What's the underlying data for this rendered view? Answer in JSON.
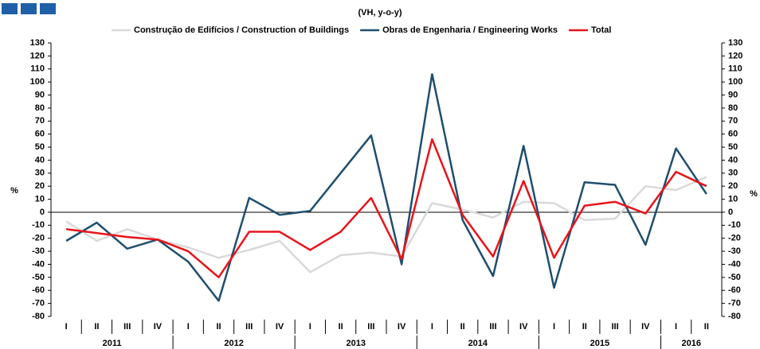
{
  "chart_data": {
    "type": "line",
    "subtitle": "(VH, y-o-y)",
    "y_axis_label": "%",
    "y2_axis_label": "%",
    "categories": [
      "I",
      "II",
      "III",
      "IV",
      "I",
      "II",
      "III",
      "IV",
      "I",
      "II",
      "III",
      "IV",
      "I",
      "II",
      "III",
      "IV",
      "I",
      "II",
      "III",
      "IV",
      "I",
      "II"
    ],
    "year_groups": [
      "2011",
      "2012",
      "2013",
      "2014",
      "2015",
      "2016"
    ],
    "series": [
      {
        "name": "Construção de Edifícios / Construction of Buildings",
        "color": "#d9d9d9",
        "values": [
          -7,
          -22,
          -13,
          -21,
          -27,
          -35,
          -29,
          -22,
          -46,
          -33,
          -31,
          -34,
          7,
          2,
          -4,
          8,
          7,
          -6,
          -5,
          20,
          17,
          27
        ]
      },
      {
        "name": "Obras de Engenharia / Engineering Works",
        "color": "#1f4e6e",
        "values": [
          -22,
          -8,
          -28,
          -21,
          -38,
          -68,
          11,
          -2,
          1,
          30,
          59,
          -40,
          106,
          -6,
          -49,
          51,
          -58,
          23,
          21,
          -25,
          49,
          14
        ]
      },
      {
        "name": "Total",
        "color": "#e8141b",
        "values": [
          -13,
          -16,
          -19,
          -21,
          -30,
          -50,
          -15,
          -15,
          -29,
          -15,
          11,
          -36,
          56,
          -2,
          -34,
          24,
          -35,
          5,
          8,
          -1,
          31,
          20
        ]
      }
    ],
    "ylim": [
      -80,
      130
    ],
    "yticks": [
      -80,
      -70,
      -60,
      -50,
      -40,
      -30,
      -20,
      -10,
      0,
      10,
      20,
      30,
      40,
      50,
      60,
      70,
      80,
      90,
      100,
      110,
      120,
      130
    ],
    "y2lim": [
      -80,
      130
    ],
    "y2ticks": [
      -80,
      -70,
      -60,
      -50,
      -40,
      -30,
      -20,
      -10,
      0,
      10,
      20,
      30,
      40,
      50,
      60,
      70,
      80,
      90,
      100,
      110,
      120,
      130
    ],
    "legend": "top"
  }
}
